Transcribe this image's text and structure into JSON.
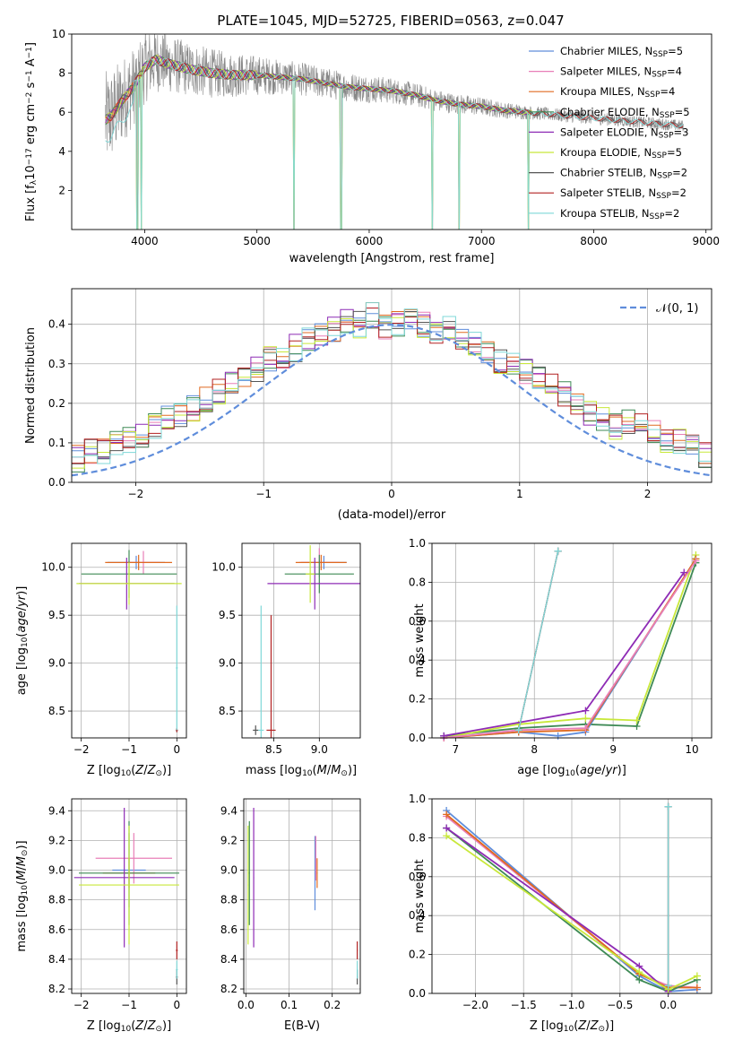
{
  "figure_title": "PLATE=1045, MJD=52725, FIBERID=0563, z=0.047",
  "models": [
    {
      "label": "Chabrier MILES, N$_{SSP}$=5",
      "imf": "Chabrier MILES",
      "nssp": "5",
      "color": "#5f8ddb"
    },
    {
      "label": "Salpeter MILES, N$_{SSP}$=4",
      "imf": "Salpeter MILES",
      "nssp": "4",
      "color": "#e87fb8"
    },
    {
      "label": "Kroupa MILES, N$_{SSP}$=4",
      "imf": "Kroupa MILES",
      "nssp": "4",
      "color": "#e06a20"
    },
    {
      "label": "Chabrier ELODIE, N$_{SSP}$=5",
      "imf": "Chabrier ELODIE",
      "nssp": "5",
      "color": "#3e8a55"
    },
    {
      "label": "Salpeter ELODIE, N$_{SSP}$=3",
      "imf": "Salpeter ELODIE",
      "nssp": "3",
      "color": "#8e2bb5"
    },
    {
      "label": "Kroupa ELODIE, N$_{SSP}$=5",
      "imf": "Kroupa ELODIE",
      "nssp": "5",
      "color": "#c8e83a"
    },
    {
      "label": "Chabrier STELIB, N$_{SSP}$=2",
      "imf": "Chabrier STELIB",
      "nssp": "2",
      "color": "#555555"
    },
    {
      "label": "Salpeter STELIB, N$_{SSP}$=2",
      "imf": "Salpeter STELIB",
      "nssp": "2",
      "color": "#b22222"
    },
    {
      "label": "Kroupa STELIB, N$_{SSP}$=2",
      "imf": "Kroupa STELIB",
      "nssp": "2",
      "color": "#7fd8d8"
    }
  ],
  "chart_data": [
    {
      "id": "spectrum",
      "type": "line",
      "xlabel": "wavelength [Angstrom, rest frame]",
      "ylabel_parts": [
        "Flux [f",
        "λ",
        "10",
        "−17",
        " erg cm",
        "−2",
        " s",
        "−1",
        " A",
        "−1",
        "]"
      ],
      "xlim": [
        3350,
        9050
      ],
      "ylim": [
        0,
        10
      ],
      "xticks": [
        4000,
        5000,
        6000,
        7000,
        8000,
        9000
      ],
      "yticks": [
        2,
        4,
        6,
        8,
        10
      ],
      "data_color": "#888888",
      "wavelength_range": [
        3650,
        8800
      ],
      "continuum": {
        "x": [
          3650,
          3700,
          3800,
          3900,
          4000,
          4100,
          4200,
          4400,
          4600,
          4800,
          5000,
          5200,
          5400,
          5600,
          5800,
          6000,
          6200,
          6400,
          6600,
          6800,
          7000,
          7200,
          7400,
          7600,
          7800,
          8000,
          8200,
          8400,
          8600,
          8800
        ],
        "y": [
          5.6,
          5.8,
          6.6,
          7.3,
          8.3,
          8.7,
          8.5,
          8.2,
          8.0,
          7.9,
          7.9,
          7.8,
          7.7,
          7.5,
          7.3,
          7.2,
          7.1,
          6.9,
          6.6,
          6.4,
          6.3,
          6.1,
          6.0,
          5.9,
          5.8,
          5.7,
          5.6,
          5.5,
          5.4,
          5.3
        ]
      },
      "noise_amplitude": [
        [
          3650,
          2.5
        ],
        [
          4200,
          1.5
        ],
        [
          5200,
          0.9
        ],
        [
          6500,
          0.6
        ],
        [
          7500,
          0.35
        ],
        [
          8800,
          0.3
        ]
      ],
      "absorption_lines": [
        3934,
        3969,
        5330,
        5750,
        6563,
        6800,
        7420
      ]
    },
    {
      "id": "residuals",
      "type": "histogram",
      "xlabel": "(data-model)/error",
      "ylabel": "Normed distribution",
      "xlim": [
        -2.5,
        2.5
      ],
      "ylim": [
        0,
        0.49
      ],
      "xticks": [
        -2,
        -1,
        0,
        1,
        2
      ],
      "yticks": [
        0.0,
        0.1,
        0.2,
        0.3,
        0.4
      ],
      "bin_width": 0.1,
      "histogram": [
        0.02,
        0.03,
        0.03,
        0.04,
        0.05,
        0.06,
        0.08,
        0.08,
        0.1,
        0.11,
        0.12,
        0.14,
        0.16,
        0.17,
        0.19,
        0.21,
        0.23,
        0.25,
        0.27,
        0.29,
        0.31,
        0.32,
        0.34,
        0.36,
        0.38,
        0.39,
        0.41,
        0.4,
        0.42,
        0.39,
        0.4,
        0.41,
        0.4,
        0.37,
        0.39,
        0.36,
        0.35,
        0.33,
        0.31,
        0.3,
        0.28,
        0.26,
        0.24,
        0.22,
        0.2,
        0.18,
        0.16,
        0.14,
        0.15,
        0.14,
        0.13,
        0.11,
        0.1,
        0.09,
        0.07,
        0.06,
        0.05,
        0.04,
        0.03,
        0.03
      ],
      "histogram_start": -3.0,
      "histogram_jitter": 0.035,
      "normal_label": "𝒩(0, 1)",
      "normal_color": "#5f8ddb",
      "grid": true,
      "legend": "top-right"
    },
    {
      "id": "age-vs-Z",
      "type": "errorbar",
      "xlabel_prefix": "Z [log",
      "xlabel_sub": "10",
      "xlabel_suffix": "(Z/Z",
      "xlabel_end": ")]",
      "ylabel": "age  [log10(age/yr)]",
      "xlim": [
        -2.2,
        0.2
      ],
      "ylim": [
        8.22,
        10.25
      ],
      "xticks": [
        -2,
        -1,
        0
      ],
      "yticks": [
        8.5,
        9.0,
        9.5,
        10.0
      ],
      "points": [
        {
          "m": 0,
          "x": -0.85,
          "y": 10.05,
          "xerr": 0.6,
          "yerr": 0.07
        },
        {
          "m": 1,
          "x": -0.7,
          "y": 10.05,
          "xerr": 0.35,
          "yerr": 0.12
        },
        {
          "m": 2,
          "x": -0.8,
          "y": 10.05,
          "xerr": 0.7,
          "yerr": 0.08
        },
        {
          "m": 3,
          "x": -1.0,
          "y": 9.93,
          "xerr": 1.0,
          "yerr": 0.25
        },
        {
          "m": 4,
          "x": -1.05,
          "y": 9.83,
          "xerr": 1.0,
          "yerr": 0.27
        },
        {
          "m": 5,
          "x": -1.0,
          "y": 9.83,
          "xerr": 1.1,
          "yerr": 0.22
        },
        {
          "m": 6,
          "x": 0.0,
          "y": 8.3,
          "xerr": 0.02,
          "yerr": 0.02
        },
        {
          "m": 7,
          "x": 0.0,
          "y": 8.3,
          "xerr": 0.02,
          "yerr": 0.02
        },
        {
          "m": 8,
          "x": 0.0,
          "y": 8.95,
          "xerr": 0.02,
          "yerr": 0.65
        }
      ]
    },
    {
      "id": "age-vs-mass",
      "type": "errorbar",
      "xlabel": "mass [log10(M/M⊙)]",
      "xlim": [
        8.15,
        9.45
      ],
      "ylim": [
        8.22,
        10.25
      ],
      "xticks": [
        8.5,
        9.0
      ],
      "yticks": [
        8.5,
        9.0,
        9.5,
        10.0
      ],
      "points": [
        {
          "m": 0,
          "x": 9.05,
          "y": 10.05,
          "xerr": 0.25,
          "yerr": 0.07
        },
        {
          "m": 1,
          "x": 9.0,
          "y": 10.05,
          "xerr": 0.22,
          "yerr": 0.15
        },
        {
          "m": 2,
          "x": 9.02,
          "y": 10.05,
          "xerr": 0.28,
          "yerr": 0.08
        },
        {
          "m": 3,
          "x": 9.0,
          "y": 9.93,
          "xerr": 0.38,
          "yerr": 0.2
        },
        {
          "m": 4,
          "x": 8.95,
          "y": 9.83,
          "xerr": 0.52,
          "yerr": 0.27
        },
        {
          "m": 5,
          "x": 8.9,
          "y": 9.93,
          "xerr": 0.05,
          "yerr": 0.3
        },
        {
          "m": 6,
          "x": 8.3,
          "y": 8.3,
          "xerr": 0.03,
          "yerr": 0.05
        },
        {
          "m": 7,
          "x": 8.47,
          "y": 8.3,
          "xerr": 0.05,
          "yerr": 1.2
        },
        {
          "m": 8,
          "x": 8.36,
          "y": 8.3,
          "xerr": 0.03,
          "yerr": 1.3
        }
      ]
    },
    {
      "id": "mass-weight-vs-age",
      "type": "line",
      "xlabel": "age  [log10(age/yr)]",
      "ylabel": "mass weight",
      "xlim": [
        6.7,
        10.25
      ],
      "ylim": [
        0,
        1.0
      ],
      "xticks": [
        7,
        8,
        9,
        10
      ],
      "yticks": [
        0.0,
        0.2,
        0.4,
        0.6,
        0.8,
        1.0
      ],
      "series": [
        {
          "m": 3,
          "x": [
            6.85,
            7.8,
            8.65,
            9.3,
            10.05
          ],
          "y": [
            0.01,
            0.05,
            0.07,
            0.06,
            0.9
          ]
        },
        {
          "m": 5,
          "x": [
            6.85,
            7.8,
            8.65,
            9.3,
            10.05
          ],
          "y": [
            0.0,
            0.07,
            0.1,
            0.09,
            0.94
          ]
        },
        {
          "m": 0,
          "x": [
            6.85,
            7.8,
            8.3,
            8.65,
            10.05
          ],
          "y": [
            0.0,
            0.03,
            0.01,
            0.03,
            0.92
          ]
        },
        {
          "m": 2,
          "x": [
            6.85,
            7.8,
            8.65,
            10.05
          ],
          "y": [
            0.0,
            0.03,
            0.04,
            0.92
          ]
        },
        {
          "m": 1,
          "x": [
            6.85,
            7.8,
            8.65,
            10.05
          ],
          "y": [
            0.0,
            0.04,
            0.05,
            0.91
          ]
        },
        {
          "m": 4,
          "x": [
            6.85,
            8.65,
            9.9
          ],
          "y": [
            0.01,
            0.14,
            0.85
          ]
        },
        {
          "m": 6,
          "x": [
            7.8,
            8.3
          ],
          "y": [
            0.04,
            0.96
          ]
        },
        {
          "m": 7,
          "x": [
            7.8,
            8.3
          ],
          "y": [
            0.04,
            0.96
          ]
        },
        {
          "m": 8,
          "x": [
            7.8,
            8.3
          ],
          "y": [
            0.04,
            0.96
          ]
        }
      ],
      "grid": true
    },
    {
      "id": "mass-vs-Z",
      "type": "errorbar",
      "ylabel": "mass [log10(M/M⊙)]",
      "xlim": [
        -2.2,
        0.2
      ],
      "ylim": [
        8.17,
        9.48
      ],
      "xticks": [
        -2,
        -1,
        0
      ],
      "yticks": [
        8.2,
        8.4,
        8.6,
        8.8,
        9.0,
        9.2,
        9.4
      ],
      "points": [
        {
          "m": 0,
          "x": -1.0,
          "y": 9.0,
          "xerr": 0.35,
          "yerr": 0.25
        },
        {
          "m": 1,
          "x": -0.9,
          "y": 9.08,
          "xerr": 0.8,
          "yerr": 0.17
        },
        {
          "m": 2,
          "x": -1.0,
          "y": 8.98,
          "xerr": 0.55,
          "yerr": 0.1
        },
        {
          "m": 3,
          "x": -1.0,
          "y": 8.98,
          "xerr": 1.05,
          "yerr": 0.35
        },
        {
          "m": 4,
          "x": -1.1,
          "y": 8.95,
          "xerr": 1.05,
          "yerr": 0.47
        },
        {
          "m": 5,
          "x": -1.0,
          "y": 8.9,
          "xerr": 1.05,
          "yerr": 0.4
        },
        {
          "m": 6,
          "x": 0.0,
          "y": 8.28,
          "xerr": 0.02,
          "yerr": 0.05
        },
        {
          "m": 7,
          "x": 0.0,
          "y": 8.46,
          "xerr": 0.02,
          "yerr": 0.06
        },
        {
          "m": 8,
          "x": 0.0,
          "y": 8.33,
          "xerr": 0.02,
          "yerr": 0.06
        }
      ]
    },
    {
      "id": "mass-vs-ebv",
      "type": "errorbar",
      "xlabel": "E(B-V)",
      "xlim": [
        -0.005,
        0.265
      ],
      "ylim": [
        8.17,
        9.48
      ],
      "xticks": [
        0.0,
        0.1,
        0.2
      ],
      "yticks": [
        8.2,
        8.4,
        8.6,
        8.8,
        9.0,
        9.2,
        9.4
      ],
      "points": [
        {
          "m": 0,
          "x": 0.16,
          "y": 8.98,
          "xerr": 0.001,
          "yerr": 0.25
        },
        {
          "m": 1,
          "x": 0.162,
          "y": 9.08,
          "xerr": 0.001,
          "yerr": 0.15
        },
        {
          "m": 2,
          "x": 0.165,
          "y": 8.98,
          "xerr": 0.001,
          "yerr": 0.1
        },
        {
          "m": 3,
          "x": 0.008,
          "y": 8.98,
          "xerr": 0.001,
          "yerr": 0.35
        },
        {
          "m": 4,
          "x": 0.018,
          "y": 8.95,
          "xerr": 0.001,
          "yerr": 0.47
        },
        {
          "m": 5,
          "x": 0.005,
          "y": 8.9,
          "xerr": 0.001,
          "yerr": 0.4
        },
        {
          "m": 6,
          "x": 0.258,
          "y": 8.28,
          "xerr": 0.001,
          "yerr": 0.05
        },
        {
          "m": 7,
          "x": 0.258,
          "y": 8.46,
          "xerr": 0.001,
          "yerr": 0.06
        },
        {
          "m": 8,
          "x": 0.258,
          "y": 8.33,
          "xerr": 0.001,
          "yerr": 0.06
        }
      ]
    },
    {
      "id": "mass-weight-vs-Z",
      "type": "line",
      "xlabel": "Z [log10(Z/Z⊙)]",
      "ylabel": "mass weight",
      "xlim": [
        -2.45,
        0.45
      ],
      "ylim": [
        0,
        1.0
      ],
      "xticks": [
        -2.0,
        -1.5,
        -1.0,
        -0.5,
        0.0
      ],
      "yticks": [
        0.0,
        0.2,
        0.4,
        0.6,
        0.8,
        1.0
      ],
      "series": [
        {
          "m": 0,
          "x": [
            -2.3,
            -0.3,
            0.0,
            0.3
          ],
          "y": [
            0.94,
            0.09,
            0.01,
            0.02
          ]
        },
        {
          "m": 1,
          "x": [
            -2.3,
            -0.3,
            0.0,
            0.3
          ],
          "y": [
            0.91,
            0.1,
            0.04,
            0.03
          ]
        },
        {
          "m": 2,
          "x": [
            -2.3,
            -0.3,
            0.0,
            0.3
          ],
          "y": [
            0.92,
            0.1,
            0.03,
            0.03
          ]
        },
        {
          "m": 3,
          "x": [
            -2.3,
            -0.3,
            0.0,
            0.3
          ],
          "y": [
            0.85,
            0.07,
            0.01,
            0.07
          ]
        },
        {
          "m": 4,
          "x": [
            -2.3,
            -0.3,
            0.0
          ],
          "y": [
            0.85,
            0.14,
            0.01
          ]
        },
        {
          "m": 5,
          "x": [
            -2.3,
            -0.3,
            0.0,
            0.3
          ],
          "y": [
            0.81,
            0.11,
            0.02,
            0.09
          ]
        },
        {
          "m": 6,
          "x": [
            0.0,
            0.0
          ],
          "y": [
            0.04,
            0.96
          ]
        },
        {
          "m": 7,
          "x": [
            0.0,
            0.0
          ],
          "y": [
            0.04,
            0.96
          ]
        },
        {
          "m": 8,
          "x": [
            0.0,
            0.0
          ],
          "y": [
            0.04,
            0.96
          ]
        }
      ],
      "grid": true
    }
  ]
}
